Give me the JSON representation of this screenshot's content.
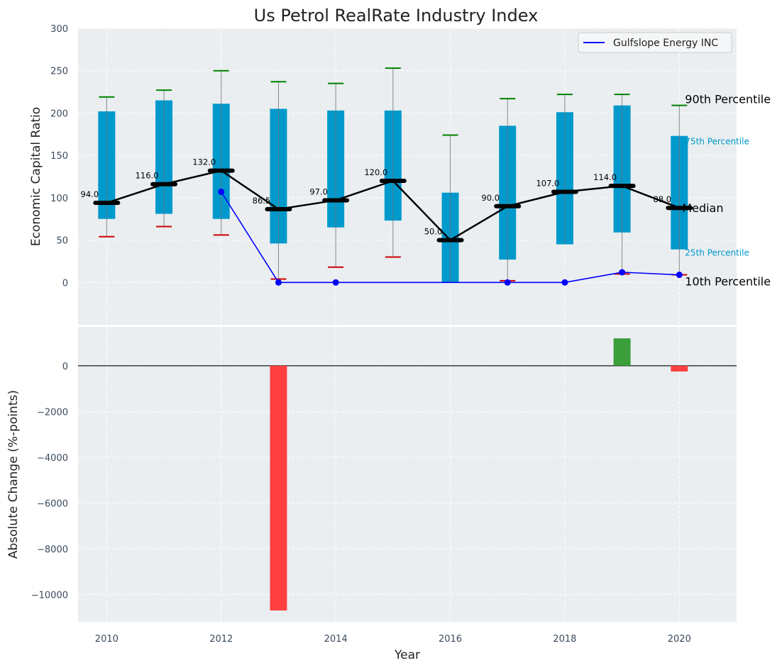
{
  "chart_data": [
    {
      "type": "box",
      "title": "Us Petrol RealRate Industry Index",
      "ylabel": "Economic Capital Ratio",
      "ylim": [
        -50,
        300
      ],
      "yticks": [
        0,
        50,
        100,
        150,
        200,
        250,
        300
      ],
      "years": [
        2010,
        2011,
        2012,
        2013,
        2014,
        2015,
        2016,
        2017,
        2018,
        2019,
        2020
      ],
      "p10": [
        54,
        66,
        56,
        4,
        18,
        30,
        null,
        2,
        null,
        10,
        9
      ],
      "p25": [
        75,
        81,
        75,
        46,
        65,
        73,
        0,
        27,
        45,
        59,
        39
      ],
      "median": [
        94,
        116,
        132,
        86.5,
        97,
        120,
        50,
        90,
        107,
        114,
        88
      ],
      "median_labels": [
        "94.0",
        "116.0",
        "132.0",
        "86.5",
        "97.0",
        "120.0",
        "50.0",
        "90.0",
        "107.0",
        "114.0",
        "88.0"
      ],
      "p75": [
        202,
        215,
        211,
        205,
        203,
        203,
        106,
        185,
        201,
        209,
        173
      ],
      "p90": [
        219,
        227,
        250,
        237,
        235,
        253,
        174,
        217,
        222,
        222,
        209
      ],
      "company": {
        "name": "Gulfslope Energy INC",
        "years": [
          2012,
          2013,
          2014,
          2017,
          2018,
          2019,
          2020
        ],
        "values": [
          107,
          0,
          0,
          0,
          0,
          12,
          9
        ]
      },
      "annotations": {
        "p90": "90th Percentile",
        "p75": "75th Percentile",
        "median": "Median",
        "p25": "25th Percentile",
        "p10": "10th Percentile"
      },
      "legend": "top-right",
      "grid": true
    },
    {
      "type": "bar",
      "ylabel": "Absolute Change (%-points)",
      "xlabel": "Year",
      "ylim": [
        -11200,
        1700
      ],
      "yticks": [
        0,
        -2000,
        -4000,
        -6000,
        -8000,
        -10000
      ],
      "xticks": [
        2010,
        2012,
        2014,
        2016,
        2018,
        2020
      ],
      "x": [
        2013,
        2019,
        2020
      ],
      "values": [
        -10700,
        1200,
        -250
      ],
      "grid": true
    }
  ],
  "colors": {
    "box": "#0099cc",
    "median": "#000000",
    "company": "#0000ff",
    "p90_cap": "#008000",
    "p10_cap": "#cc0000",
    "positive": "#3a9e3a",
    "negative": "#ff4040",
    "panel_bg": "#eaeef0"
  }
}
